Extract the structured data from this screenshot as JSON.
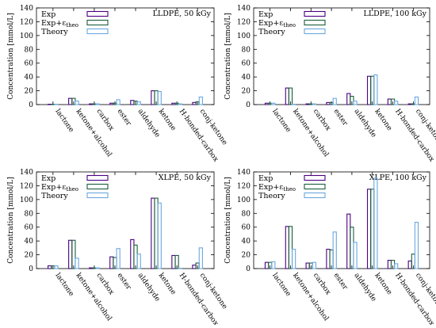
{
  "chart_data": [
    {
      "type": "bar",
      "title": "LLDPE, 50 kGy",
      "ylabel": "Concentration [mmol/L]",
      "ylim": [
        0,
        140
      ],
      "yticks": [
        0,
        20,
        40,
        60,
        80,
        100,
        120,
        140
      ],
      "grid": false,
      "legend_placement": "top-left",
      "categories": [
        "lactone",
        "ketone+alcohol",
        "carbox",
        "ester",
        "aldehyde",
        "ketone",
        "H-bonded-carbox",
        "conj-ketone"
      ],
      "series": [
        {
          "name": "Exp",
          "color": "#4b0082",
          "values": [
            0.5,
            9,
            1,
            2,
            6,
            20,
            2,
            3
          ]
        },
        {
          "name": "Exp+εtheo",
          "color": "#1b5e3b",
          "values": [
            0.5,
            9,
            1,
            2,
            5,
            20,
            2,
            4
          ]
        },
        {
          "name": "Theory",
          "color": "#6aa8e0",
          "values": [
            0.5,
            5,
            1,
            7,
            4,
            19,
            1,
            11
          ]
        }
      ]
    },
    {
      "type": "bar",
      "title": "LLDPE, 100 kGy",
      "ylabel": "Concentration [mmol/L]",
      "ylim": [
        0,
        140
      ],
      "yticks": [
        0,
        20,
        40,
        60,
        80,
        100,
        120,
        140
      ],
      "grid": false,
      "legend_placement": "top-left",
      "categories": [
        "lactone",
        "ketone+alcohol",
        "carbox",
        "ester",
        "aldehyde",
        "ketone",
        "H-bonded-carbox",
        "conj-ketone"
      ],
      "series": [
        {
          "name": "Exp",
          "color": "#4b0082",
          "values": [
            2,
            24,
            1,
            3,
            16,
            41,
            8,
            1
          ]
        },
        {
          "name": "Exp+εtheo",
          "color": "#1b5e3b",
          "values": [
            2,
            24,
            1,
            3,
            12,
            41,
            8,
            1
          ]
        },
        {
          "name": "Theory",
          "color": "#6aa8e0",
          "values": [
            2,
            0.5,
            1,
            9,
            5,
            43,
            5,
            11
          ]
        }
      ]
    },
    {
      "type": "bar",
      "title": "XLPE, 50 kGy",
      "ylabel": "Concentration [mmol/L]",
      "ylim": [
        0,
        140
      ],
      "yticks": [
        0,
        20,
        40,
        60,
        80,
        100,
        120,
        140
      ],
      "grid": false,
      "legend_placement": "top-left",
      "categories": [
        "lactone",
        "ketone+alcohol",
        "carbox",
        "ester",
        "aldehyde",
        "ketone",
        "H-bonded-carbox",
        "conj-ketone"
      ],
      "series": [
        {
          "name": "Exp",
          "color": "#4b0082",
          "values": [
            4,
            41,
            1,
            17,
            42,
            102,
            19,
            5
          ]
        },
        {
          "name": "Exp+εtheo",
          "color": "#1b5e3b",
          "values": [
            4,
            41,
            1,
            16,
            34,
            102,
            19,
            8
          ]
        },
        {
          "name": "Theory",
          "color": "#6aa8e0",
          "values": [
            4,
            15,
            1,
            29,
            21,
            95,
            0.5,
            30
          ]
        }
      ]
    },
    {
      "type": "bar",
      "title": "XLPE, 100 kGy",
      "ylabel": "Concentration [mmol/L]",
      "ylim": [
        0,
        140
      ],
      "yticks": [
        0,
        20,
        40,
        60,
        80,
        100,
        120,
        140
      ],
      "grid": false,
      "legend_placement": "top-left",
      "categories": [
        "lactone",
        "ketone+alcohol",
        "carbox",
        "ester",
        "aldehyde",
        "ketone",
        "H-bonded-carbox",
        "conj-ketone"
      ],
      "series": [
        {
          "name": "Exp",
          "color": "#4b0082",
          "values": [
            9,
            61,
            8,
            28,
            79,
            115,
            12,
            11
          ]
        },
        {
          "name": "Exp+εtheo",
          "color": "#1b5e3b",
          "values": [
            9,
            61,
            8,
            27,
            60,
            115,
            12,
            21
          ]
        },
        {
          "name": "Theory",
          "color": "#6aa8e0",
          "values": [
            10,
            28,
            9,
            53,
            38,
            131,
            7,
            67
          ]
        }
      ]
    }
  ]
}
